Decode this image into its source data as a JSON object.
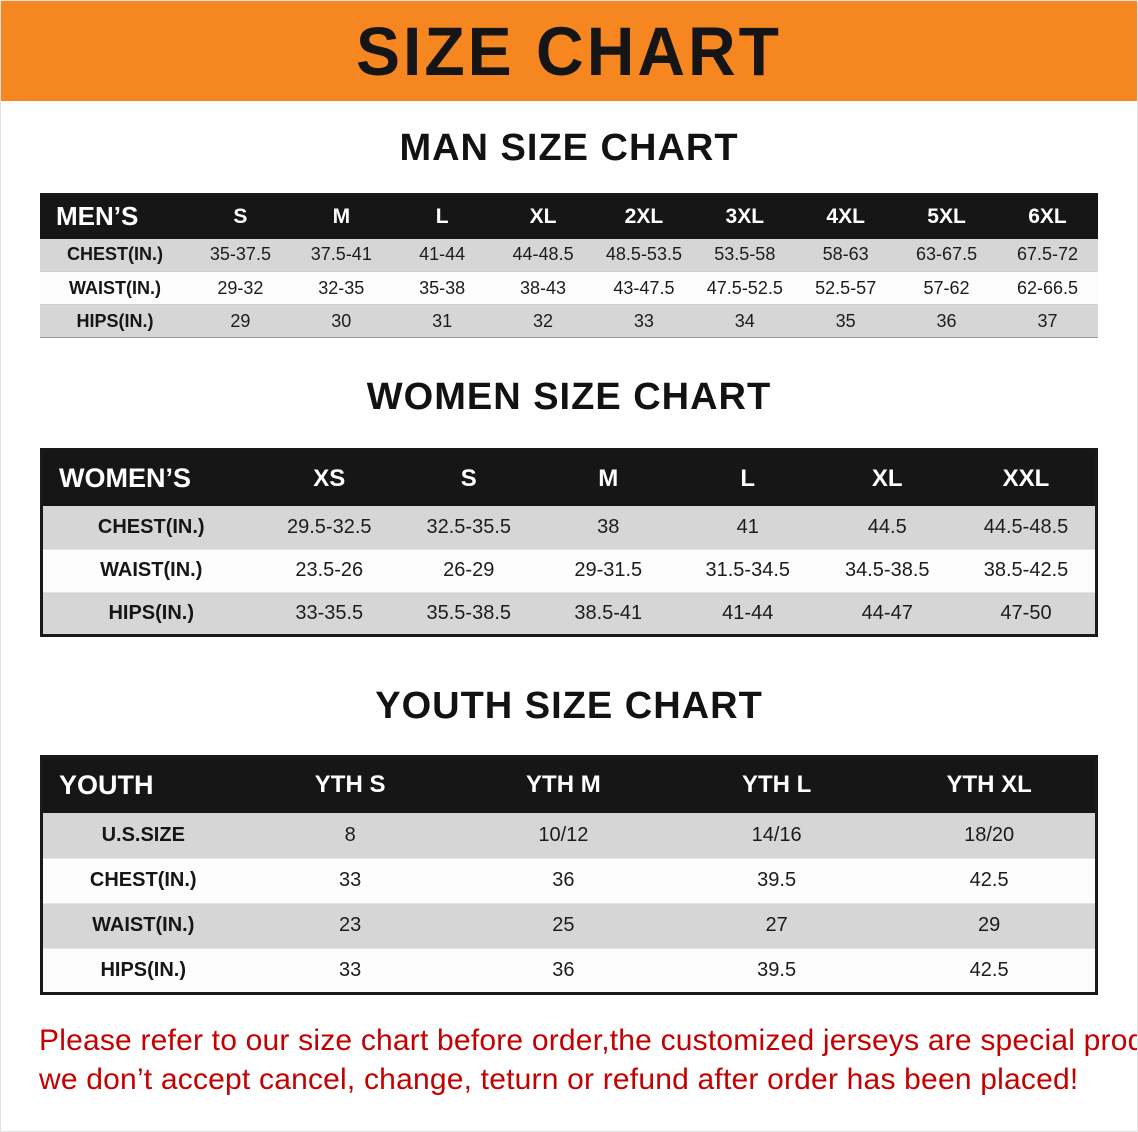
{
  "banner": {
    "title": "SIZE CHART"
  },
  "colors": {
    "banner_orange": "#f6861f",
    "header_black": "#161616",
    "row_gray": "#d6d6d6",
    "disclaimer_red": "#c40000"
  },
  "sections": [
    {
      "heading": "MAN SIZE CHART",
      "table": {
        "corner_label": "MEN’S",
        "columns": [
          "S",
          "M",
          "L",
          "XL",
          "2XL",
          "3XL",
          "4XL",
          "5XL",
          "6XL"
        ],
        "rows": [
          {
            "label": "CHEST(IN.)",
            "values": [
              "35-37.5",
              "37.5-41",
              "41-44",
              "44-48.5",
              "48.5-53.5",
              "53.5-58",
              "58-63",
              "63-67.5",
              "67.5-72"
            ]
          },
          {
            "label": "WAIST(IN.)",
            "values": [
              "29-32",
              "32-35",
              "35-38",
              "38-43",
              "43-47.5",
              "47.5-52.5",
              "52.5-57",
              "57-62",
              "62-66.5"
            ]
          },
          {
            "label": "HIPS(IN.)",
            "values": [
              "29",
              "30",
              "31",
              "32",
              "33",
              "34",
              "35",
              "36",
              "37"
            ]
          }
        ]
      }
    },
    {
      "heading": "WOMEN SIZE CHART",
      "table": {
        "corner_label": "WOMEN’S",
        "columns": [
          "XS",
          "S",
          "M",
          "L",
          "XL",
          "XXL"
        ],
        "rows": [
          {
            "label": "CHEST(IN.)",
            "values": [
              "29.5-32.5",
              "32.5-35.5",
              "38",
              "41",
              "44.5",
              "44.5-48.5"
            ]
          },
          {
            "label": "WAIST(IN.)",
            "values": [
              "23.5-26",
              "26-29",
              "29-31.5",
              "31.5-34.5",
              "34.5-38.5",
              "38.5-42.5"
            ]
          },
          {
            "label": "HIPS(IN.)",
            "values": [
              "33-35.5",
              "35.5-38.5",
              "38.5-41",
              "41-44",
              "44-47",
              "47-50"
            ]
          }
        ]
      }
    },
    {
      "heading": "YOUTH SIZE CHART",
      "table": {
        "corner_label": "YOUTH",
        "columns": [
          "YTH S",
          "YTH M",
          "YTH L",
          "YTH XL"
        ],
        "rows": [
          {
            "label": "U.S.SIZE",
            "values": [
              "8",
              "10/12",
              "14/16",
              "18/20"
            ]
          },
          {
            "label": "CHEST(IN.)",
            "values": [
              "33",
              "36",
              "39.5",
              "42.5"
            ]
          },
          {
            "label": "WAIST(IN.)",
            "values": [
              "23",
              "25",
              "27",
              "29"
            ]
          },
          {
            "label": "HIPS(IN.)",
            "values": [
              "33",
              "36",
              "39.5",
              "42.5"
            ]
          }
        ]
      }
    }
  ],
  "disclaimer": {
    "line1": "Please refer to our size chart before order,the customized jerseys are special products,",
    "line2": "we don’t accept cancel, change, teturn or refund after order has been placed!"
  }
}
